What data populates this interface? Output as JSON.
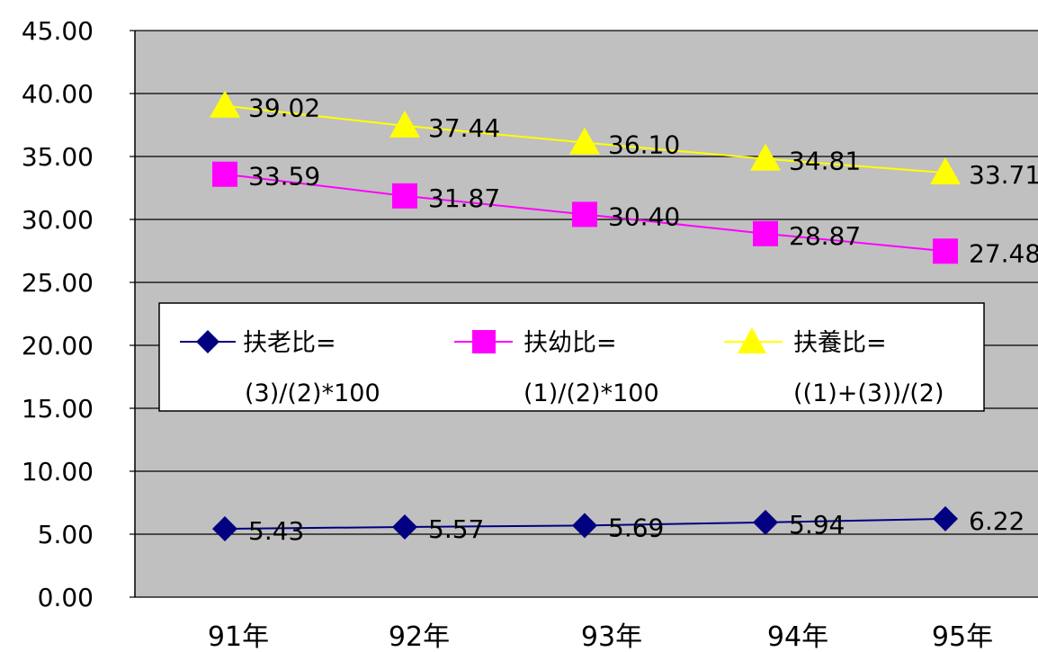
{
  "chart_data": {
    "type": "line",
    "categories": [
      "91年",
      "92年",
      "93年",
      "94年",
      "95年"
    ],
    "series": [
      {
        "name": "扶老比=",
        "name_line2": "(3)/(2)*100",
        "values": [
          5.43,
          5.57,
          5.69,
          5.94,
          6.22
        ],
        "labels": [
          "5.43",
          "5.57",
          "5.69",
          "5.94",
          "6.22"
        ],
        "color": "#000080",
        "marker": "diamond"
      },
      {
        "name": "扶幼比=",
        "name_line2": "(1)/(2)*100",
        "values": [
          33.59,
          31.87,
          30.4,
          28.87,
          27.48
        ],
        "labels": [
          "33.59",
          "31.87",
          "30.40",
          "28.87",
          "27.48"
        ],
        "color": "#ff00ff",
        "marker": "square"
      },
      {
        "name": "扶養比=",
        "name_line2": "((1)+(3))/(2)",
        "values": [
          39.02,
          37.44,
          36.1,
          34.81,
          33.71
        ],
        "labels": [
          "39.02",
          "37.44",
          "36.10",
          "34.81",
          "33.71"
        ],
        "color": "#ffff00",
        "marker": "triangle"
      }
    ],
    "yticks": [
      "0.00",
      "5.00",
      "10.00",
      "15.00",
      "20.00",
      "25.00",
      "30.00",
      "35.00",
      "40.00",
      "45.00"
    ],
    "ylim": [
      0,
      45
    ],
    "grid": true,
    "plot_background": "#c0c0c0",
    "legend_position": "center-left inside plot"
  }
}
